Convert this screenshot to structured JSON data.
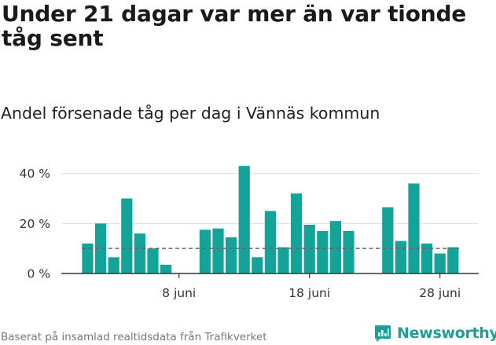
{
  "title": "Under 21 dagar var mer än var tionde tåg sent",
  "chart_data": {
    "type": "bar",
    "subtitle": "Andel försenade tåg per dag i Vännäs kommun",
    "start_day": 1,
    "values": [
      12,
      20,
      6.5,
      30,
      16,
      10,
      3.5,
      null,
      null,
      17.5,
      18,
      14.5,
      43,
      6.5,
      25,
      10.5,
      32,
      19.5,
      17,
      21,
      17,
      null,
      null,
      26.5,
      13,
      36,
      12,
      8,
      10.5
    ],
    "ylim": [
      0,
      44
    ],
    "yticks": [
      0,
      20,
      40
    ],
    "ytick_labels": [
      "0 %",
      "20 %",
      "40 %"
    ],
    "xticks": [
      {
        "day": 8,
        "label": "8 juni"
      },
      {
        "day": 18,
        "label": "18 juni"
      },
      {
        "day": 28,
        "label": "28 juni"
      }
    ],
    "reference_line": 10,
    "grid": true,
    "bar_color": "#13a399",
    "grid_color": "#e3e3e3",
    "axis_color": "#333333",
    "reference_color": "#666666"
  },
  "footer": {
    "source": "Baserat på insamlad realtidsdata från Trafikverket",
    "brand": "Newsworthy"
  }
}
